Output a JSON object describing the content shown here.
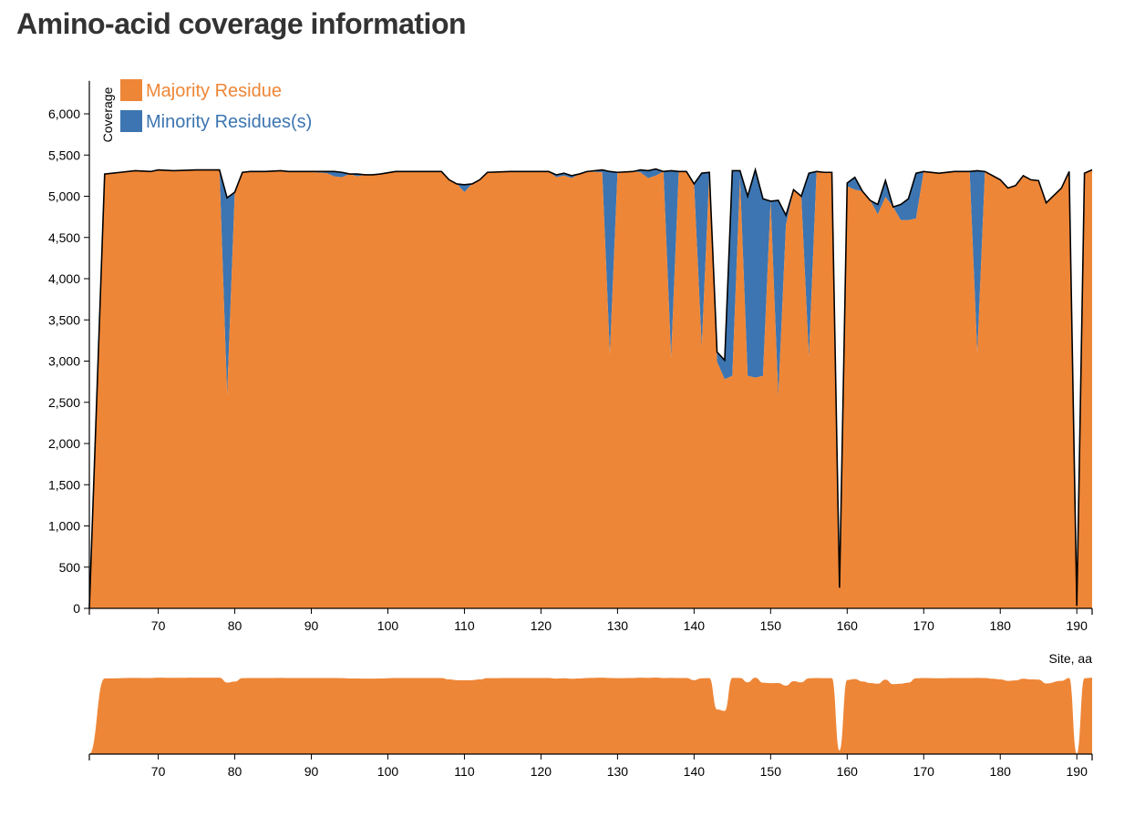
{
  "page": {
    "title": "Amino-acid coverage information"
  },
  "chart_data": {
    "type": "area",
    "stacked": true,
    "x_label": "Site, aa",
    "y_label": "Coverage",
    "xlim": [
      61,
      192
    ],
    "ylim": [
      0,
      6400
    ],
    "x_ticks": [
      70,
      80,
      90,
      100,
      110,
      120,
      130,
      140,
      150,
      160,
      170,
      180,
      190
    ],
    "x_tick_labels": [
      "70",
      "80",
      "90",
      "100",
      "110",
      "120",
      "130",
      "140",
      "150",
      "160",
      "170",
      "180",
      "190"
    ],
    "y_ticks": [
      0,
      500,
      1000,
      1500,
      2000,
      2500,
      3000,
      3500,
      4000,
      4500,
      5000,
      5500,
      6000
    ],
    "y_tick_labels": [
      "0",
      "500",
      "1,000",
      "1,500",
      "2,000",
      "2,500",
      "3,000",
      "3,500",
      "4,000",
      "4,500",
      "5,000",
      "5,500",
      "6,000"
    ],
    "legend": {
      "position": "top-left"
    },
    "colors": {
      "majority": "#ee8637",
      "minority": "#3c75b1",
      "total_line": "#000000"
    },
    "x": [
      61,
      63,
      67,
      69,
      70,
      72,
      75,
      77,
      78,
      79,
      80,
      81,
      82,
      84,
      86,
      87,
      89,
      92,
      93,
      94,
      95,
      96,
      97,
      98,
      99,
      101,
      103,
      105,
      107,
      108,
      109,
      110,
      111,
      112,
      113,
      116,
      117,
      120,
      121,
      122,
      123,
      124,
      125,
      126,
      128,
      129,
      130,
      132,
      133,
      134,
      135,
      136,
      137,
      138,
      139,
      140,
      141,
      142,
      143,
      144,
      145,
      146,
      147,
      148,
      149,
      150,
      151,
      152,
      153,
      154,
      155,
      156,
      157,
      158,
      159,
      160,
      161,
      162,
      163,
      164,
      165,
      166,
      167,
      168,
      169,
      170,
      172,
      174,
      175,
      176,
      177,
      178,
      179,
      180,
      181,
      182,
      183,
      184,
      185,
      186,
      188,
      189,
      190,
      191,
      192
    ],
    "series": [
      {
        "name": "Majority Residue",
        "values": [
          0,
          5270,
          5310,
          5300,
          5320,
          5310,
          5320,
          5320,
          5320,
          2580,
          5050,
          5290,
          5300,
          5300,
          5310,
          5300,
          5300,
          5280,
          5240,
          5230,
          5270,
          5240,
          5260,
          5260,
          5270,
          5300,
          5300,
          5300,
          5300,
          5200,
          5150,
          5050,
          5150,
          5200,
          5290,
          5300,
          5300,
          5300,
          5300,
          5230,
          5250,
          5220,
          5270,
          5300,
          5290,
          3080,
          5290,
          5300,
          5290,
          5220,
          5250,
          5300,
          3040,
          5300,
          5300,
          5150,
          3170,
          5290,
          2990,
          2780,
          2820,
          5220,
          2820,
          2800,
          2820,
          4940,
          2570,
          4650,
          5080,
          5000,
          3050,
          5300,
          5290,
          5290,
          250,
          5120,
          5080,
          5060,
          4950,
          4780,
          4990,
          4870,
          4710,
          4710,
          4730,
          5300,
          5280,
          5300,
          5300,
          5300,
          3090,
          5300,
          5250,
          5200,
          5100,
          5130,
          5250,
          5200,
          5190,
          4920,
          5100,
          5300,
          30,
          5280,
          5320
        ]
      },
      {
        "name": "Minority Residues(s)",
        "values": [
          0,
          0,
          0,
          0,
          0,
          0,
          0,
          0,
          0,
          2400,
          0,
          0,
          0,
          0,
          0,
          0,
          0,
          20,
          60,
          60,
          0,
          30,
          0,
          0,
          0,
          0,
          0,
          0,
          0,
          0,
          0,
          90,
          0,
          0,
          0,
          0,
          0,
          0,
          0,
          30,
          30,
          30,
          0,
          0,
          30,
          2220,
          0,
          0,
          30,
          90,
          80,
          0,
          2270,
          0,
          0,
          0,
          2110,
          0,
          120,
          230,
          2490,
          90,
          2180,
          2520,
          2150,
          0,
          2380,
          120,
          0,
          0,
          2230,
          0,
          0,
          0,
          0,
          40,
          150,
          0,
          0,
          120,
          200,
          0,
          190,
          260,
          550,
          0,
          0,
          0,
          0,
          0,
          2220,
          0,
          0,
          0,
          0,
          0,
          0,
          0,
          0,
          0,
          0,
          0,
          0,
          0,
          0
        ]
      }
    ]
  }
}
